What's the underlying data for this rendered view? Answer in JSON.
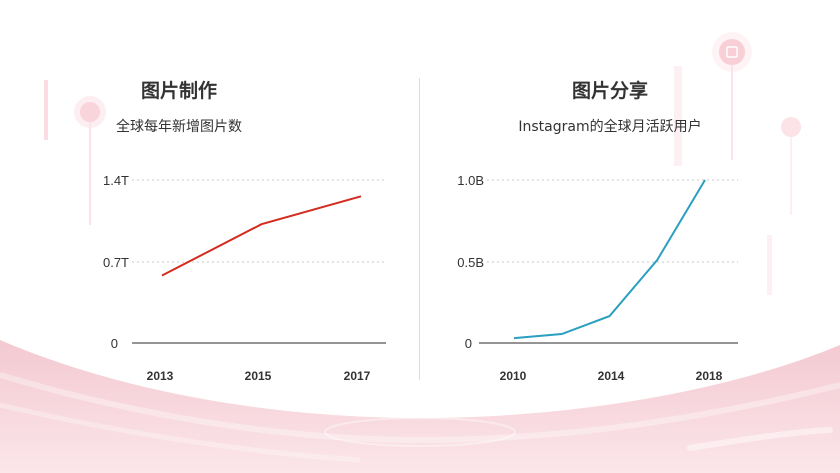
{
  "left_panel": {
    "title": "图片制作",
    "subtitle": "全球每年新增图片数"
  },
  "right_panel": {
    "title": "图片分享",
    "subtitle": "Instagram的全球月活跃用户"
  },
  "colors": {
    "left_line": "#d42a1f",
    "right_line": "#2a9fbf",
    "grid": "#c8c8c8",
    "axis": "#555555",
    "background_accent": "#f6d3d9"
  },
  "chart_data": [
    {
      "type": "line",
      "title": "图片制作",
      "subtitle": "全球每年新增图片数",
      "xlabel": "",
      "ylabel": "",
      "x": [
        2013,
        2015,
        2017
      ],
      "x_tick_labels": [
        "2013",
        "2015",
        "2017"
      ],
      "series": [
        {
          "name": "全球每年新增图片数",
          "values": [
            0.58,
            1.02,
            1.26
          ],
          "unit": "T"
        }
      ],
      "y_tick_labels": [
        "0",
        "0.7T",
        "1.4T"
      ],
      "y_ticks": [
        0,
        0.7,
        1.4
      ],
      "ylim": [
        0,
        1.4
      ],
      "grid": "horizontal dotted",
      "legend": "none"
    },
    {
      "type": "line",
      "title": "图片分享",
      "subtitle": "Instagram的全球月活跃用户",
      "xlabel": "",
      "ylabel": "",
      "x": [
        2010,
        2012,
        2014,
        2016,
        2018
      ],
      "x_tick_labels": [
        "2010",
        "2014",
        "2018"
      ],
      "series": [
        {
          "name": "Instagram的全球月活跃用户",
          "values": [
            0.03,
            0.055,
            0.165,
            0.51,
            1.0
          ],
          "unit": "B"
        }
      ],
      "y_tick_labels": [
        "0",
        "0.5B",
        "1.0B"
      ],
      "y_ticks": [
        0,
        0.5,
        1.0
      ],
      "ylim": [
        0,
        1.0
      ],
      "grid": "horizontal dotted",
      "legend": "none"
    }
  ]
}
